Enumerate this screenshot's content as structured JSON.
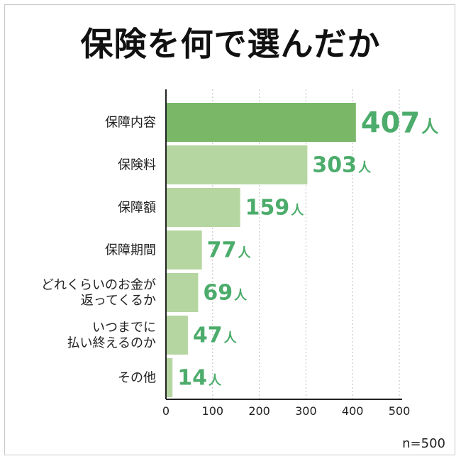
{
  "title": "保険を何で選んだか",
  "note": "n=500",
  "colors": {
    "highlight": "#7ab868",
    "bar": "#b6d6a1",
    "value_text": "#4cac6b",
    "grid": "#bdbdbd",
    "axis": "#222222"
  },
  "chart_data": {
    "type": "bar",
    "orientation": "horizontal",
    "title": "保険を何で選んだか",
    "categories": [
      [
        "保障内容"
      ],
      [
        "保険料"
      ],
      [
        "保障額"
      ],
      [
        "保障期間"
      ],
      [
        "どれくらいのお金が",
        "返ってくるか"
      ],
      [
        "いつまでに",
        "払い終えるのか"
      ],
      [
        "その他"
      ]
    ],
    "values": [
      407,
      303,
      159,
      77,
      69,
      47,
      14
    ],
    "value_unit": "人",
    "xlim": [
      0,
      500
    ],
    "xticks": [
      0,
      100,
      200,
      300,
      400,
      500
    ],
    "grid": "vertical dotted",
    "highlight_index": 0
  }
}
